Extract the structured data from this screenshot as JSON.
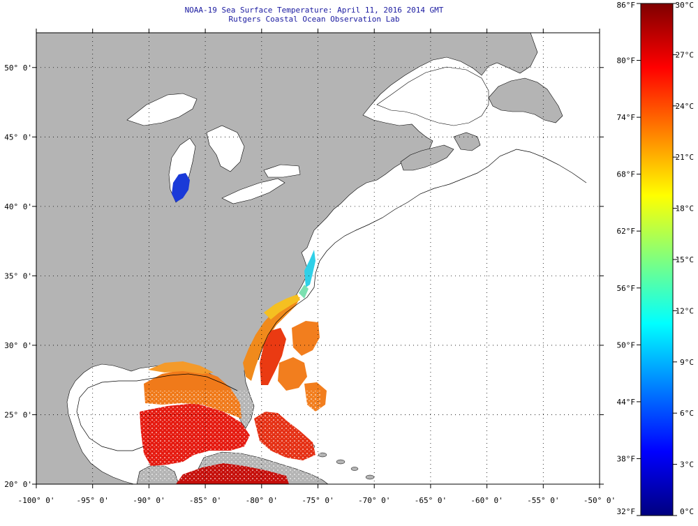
{
  "title": {
    "line1": "NOAA-19 Sea Surface Temperature:  April 11, 2016 2014 GMT",
    "line2": "Rutgers Coastal Ocean Observation Lab"
  },
  "map": {
    "lon_range": [
      -100,
      -50
    ],
    "lat_range": [
      20,
      52.5
    ],
    "lon_ticks": [
      "-100° 0'",
      "-95° 0'",
      "-90° 0'",
      "-85° 0'",
      "-80° 0'",
      "-75° 0'",
      "-70° 0'",
      "-65° 0'",
      "-60° 0'",
      "-55° 0'",
      "-50° 0'"
    ],
    "lat_ticks": [
      "50° 0'",
      "45° 0'",
      "40° 0'",
      "35° 0'",
      "30° 0'",
      "25° 0'",
      "20° 0'"
    ],
    "grid": "dotted",
    "land_color": "#b4b4b4",
    "ocean_no_data_color": "#ffffff"
  },
  "colorbar": {
    "f_labels": [
      "86°F",
      "80°F",
      "74°F",
      "68°F",
      "62°F",
      "56°F",
      "50°F",
      "44°F",
      "38°F",
      "32°F"
    ],
    "c_labels": [
      "30°C",
      "27°C",
      "24°C",
      "21°C",
      "18°C",
      "15°C",
      "12°C",
      "9°C",
      "6°C",
      "3°C",
      "0°C"
    ],
    "range_c": [
      0,
      30
    ],
    "colors": [
      "#00007f",
      "#0000ff",
      "#007fff",
      "#00ffff",
      "#7fff7f",
      "#ffff00",
      "#ff7f00",
      "#ff0000",
      "#7f0000"
    ]
  }
}
